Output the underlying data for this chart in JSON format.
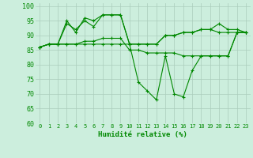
{
  "xlabel": "Humidité relative (%)",
  "background_color": "#cceedd",
  "grid_color": "#aaccbb",
  "line_color": "#008800",
  "ylim": [
    60,
    101
  ],
  "xlim": [
    -0.5,
    23.5
  ],
  "yticks": [
    60,
    65,
    70,
    75,
    80,
    85,
    90,
    95,
    100
  ],
  "xticks": [
    0,
    1,
    2,
    3,
    4,
    5,
    6,
    7,
    8,
    9,
    10,
    11,
    12,
    13,
    14,
    15,
    16,
    17,
    18,
    19,
    20,
    21,
    22,
    23
  ],
  "series": [
    [
      86,
      87,
      87,
      95,
      91,
      96,
      95,
      97,
      97,
      97,
      87,
      87,
      87,
      87,
      90,
      90,
      91,
      91,
      92,
      92,
      91,
      91,
      91,
      91
    ],
    [
      86,
      87,
      87,
      94,
      92,
      95,
      93,
      97,
      97,
      97,
      87,
      87,
      87,
      87,
      90,
      90,
      91,
      91,
      92,
      92,
      94,
      92,
      92,
      91
    ],
    [
      86,
      87,
      87,
      87,
      87,
      87,
      87,
      87,
      87,
      87,
      87,
      74,
      71,
      68,
      83,
      70,
      69,
      78,
      83,
      83,
      83,
      83,
      91,
      91
    ],
    [
      86,
      87,
      87,
      87,
      87,
      88,
      88,
      89,
      89,
      89,
      85,
      85,
      84,
      84,
      84,
      84,
      83,
      83,
      83,
      83,
      83,
      83,
      91,
      91
    ]
  ]
}
